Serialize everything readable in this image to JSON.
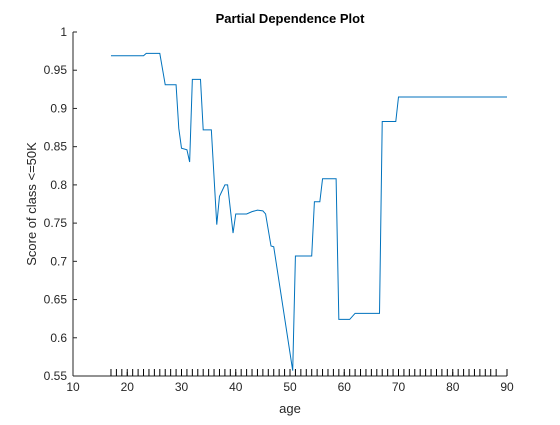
{
  "chart_data": {
    "type": "line",
    "title": "Partial Dependence Plot",
    "xlabel": "age",
    "ylabel": "Score of class <=50K",
    "xlim": [
      10,
      90
    ],
    "ylim": [
      0.55,
      1
    ],
    "xticks": [
      10,
      20,
      30,
      40,
      50,
      60,
      70,
      80,
      90
    ],
    "yticks": [
      0.55,
      0.6,
      0.65,
      0.7,
      0.75,
      0.8,
      0.85,
      0.9,
      0.95,
      1
    ],
    "grid": false,
    "box": "left-bottom",
    "series": [
      {
        "color": "#0072BD",
        "x": [
          17,
          23,
          23.5,
          26,
          27,
          29,
          29.5,
          30,
          31,
          31.5,
          32,
          33.5,
          34,
          35.5,
          36.5,
          37,
          38,
          38.5,
          39.5,
          40,
          42,
          43,
          44,
          45,
          45.5,
          46.5,
          47,
          50.5,
          51,
          54,
          54.5,
          55.5,
          56,
          58.5,
          59,
          61,
          62,
          66.5,
          67,
          69.5,
          70,
          90
        ],
        "y": [
          0.969,
          0.969,
          0.972,
          0.972,
          0.931,
          0.931,
          0.874,
          0.848,
          0.846,
          0.83,
          0.938,
          0.938,
          0.872,
          0.872,
          0.748,
          0.785,
          0.8,
          0.8,
          0.737,
          0.762,
          0.762,
          0.765,
          0.767,
          0.766,
          0.762,
          0.72,
          0.719,
          0.557,
          0.707,
          0.707,
          0.778,
          0.778,
          0.808,
          0.808,
          0.624,
          0.624,
          0.632,
          0.632,
          0.883,
          0.883,
          0.915,
          0.915
        ]
      }
    ],
    "rug_x": [
      17,
      18,
      19,
      20,
      21,
      22,
      23,
      24,
      25,
      26,
      27,
      28,
      29,
      30,
      31,
      32,
      33,
      34,
      35,
      36,
      37,
      38,
      39,
      40,
      41,
      42,
      43,
      44,
      45,
      46,
      47,
      48,
      49,
      50,
      51,
      52,
      53,
      54,
      55,
      56,
      57,
      58,
      59,
      60,
      61,
      62,
      63,
      64,
      65,
      66,
      67,
      68,
      69,
      70,
      71,
      72,
      73,
      74,
      75,
      76,
      77,
      78,
      79,
      80,
      81,
      82,
      83,
      84,
      85,
      86,
      87,
      88,
      90
    ]
  }
}
